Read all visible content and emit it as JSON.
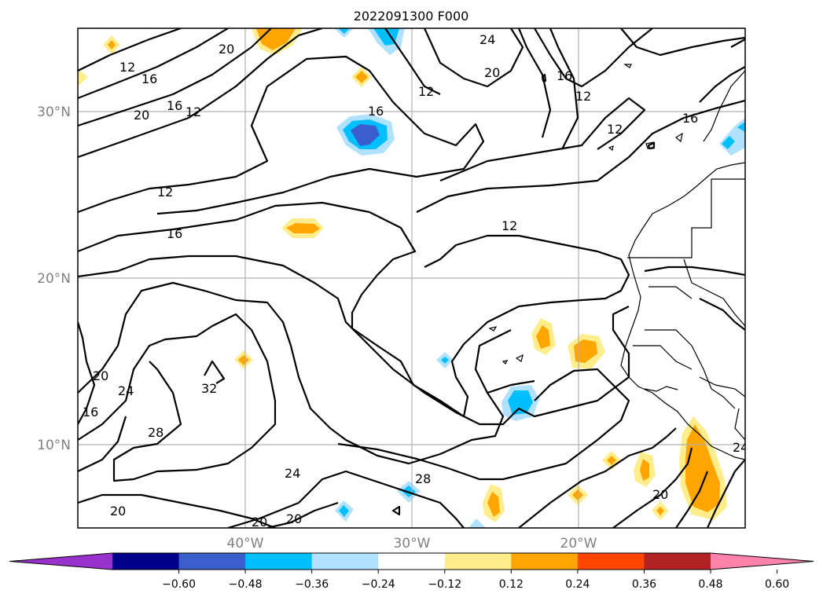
{
  "title": "2022091300 F000",
  "map": {
    "lat_labels": [
      "30°N",
      "20°N",
      "10°N"
    ],
    "lon_labels": [
      "40°W",
      "30°W",
      "20°W"
    ]
  },
  "colorbar": {
    "colors": [
      "#9932cc",
      "#00008b",
      "#3a5fcd",
      "#00bfff",
      "#b0e2ff",
      "#ffffff",
      "#ffec8b",
      "#ffa500",
      "#ff4500",
      "#b22222",
      "#ff82ab"
    ],
    "tick_labels": [
      "−0.60",
      "−0.48",
      "−0.36",
      "−0.24",
      "−0.12",
      "0.12",
      "0.24",
      "0.36",
      "0.48",
      "0.60"
    ]
  },
  "contour_labels": [
    "12",
    "16",
    "20",
    "16",
    "12",
    "20",
    "24",
    "20",
    "16",
    "16",
    "12",
    "12",
    "12",
    "16",
    "12",
    "16",
    "12",
    "20",
    "24",
    "16",
    "28",
    "32",
    "24",
    "28",
    "20",
    "20",
    "20",
    "20",
    "24"
  ]
}
